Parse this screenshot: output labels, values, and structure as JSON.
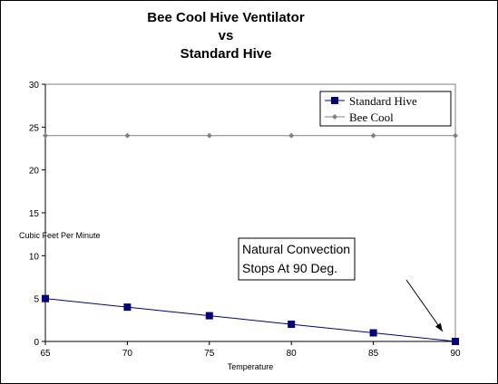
{
  "chart_data": {
    "type": "line",
    "title": [
      "Bee Cool Hive Ventilator",
      "vs",
      "Standard Hive"
    ],
    "xlabel": "Temperature",
    "ylabel": "Cubic Feet Per Minute",
    "x": [
      65,
      70,
      75,
      80,
      85,
      90
    ],
    "xlim": [
      65,
      90
    ],
    "ylim": [
      0,
      30
    ],
    "y_ticks": [
      0,
      5,
      10,
      15,
      20,
      25,
      30
    ],
    "grid": false,
    "legend_position": "top-right",
    "series": [
      {
        "name": "Standard Hive",
        "values": [
          5,
          4,
          3,
          2,
          1,
          0
        ],
        "color": "#000080",
        "marker": "square"
      },
      {
        "name": "Bee Cool",
        "values": [
          24,
          24,
          24,
          24,
          24,
          24
        ],
        "color": "#808080",
        "marker": "diamond"
      }
    ],
    "annotation": {
      "lines": [
        "Natural Convection",
        "Stops At 90 Deg."
      ],
      "target": {
        "x": 90,
        "y": 0
      }
    }
  }
}
